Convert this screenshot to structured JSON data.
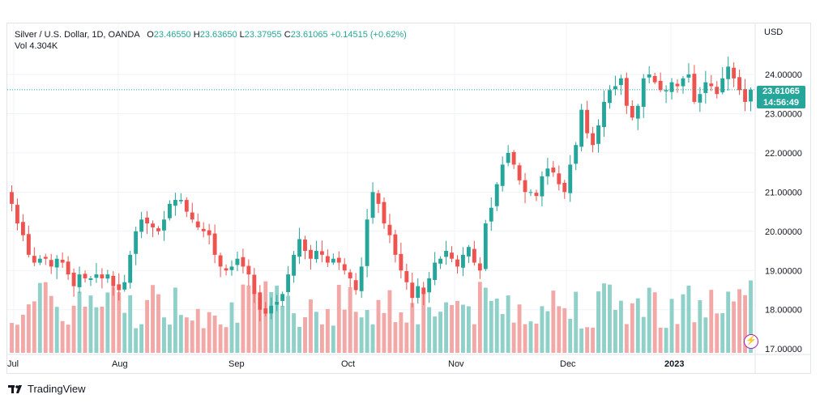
{
  "legend": {
    "symbol": "Silver / U.S. Dollar, 1D, OANDA",
    "o_label": "O",
    "o_value": "23.46550",
    "h_label": "H",
    "h_value": "23.63650",
    "l_label": "L",
    "l_value": "23.37955",
    "c_label": "C",
    "c_value": "23.61065",
    "change": "+0.14515 (+0.62%)",
    "vol_label": "Vol",
    "vol_value": "4.304K"
  },
  "currency": "USD",
  "last_price": "23.61065",
  "countdown": "14:56:49",
  "branding": "TradingView",
  "colors": {
    "up": "#26a69a",
    "down": "#ef5350",
    "up_vol": "#8fd0c9",
    "down_vol": "#f2a8a6"
  },
  "chart_data": {
    "type": "candlestick",
    "y_ticks": [
      "17.00000",
      "18.00000",
      "19.00000",
      "20.00000",
      "21.00000",
      "22.00000",
      "23.00000",
      "24.00000"
    ],
    "x_labels": [
      "Jul",
      "Aug",
      "Sep",
      "Oct",
      "Nov",
      "Dec",
      "2023"
    ],
    "ylim": [
      16.9,
      25.3
    ],
    "close_series": [
      20.7,
      20.2,
      19.9,
      19.4,
      19.2,
      19.3,
      19.3,
      19.1,
      19.3,
      19.2,
      18.9,
      18.6,
      18.9,
      18.8,
      18.8,
      18.9,
      18.8,
      18.9,
      18.6,
      18.5,
      18.7,
      19.4,
      20.0,
      20.3,
      20.2,
      20.1,
      20.0,
      20.3,
      20.7,
      20.8,
      20.8,
      20.5,
      20.3,
      20.1,
      20.0,
      19.9,
      19.4,
      19.1,
      19.0,
      19.1,
      19.3,
      19.1,
      18.9,
      18.4,
      18.0,
      17.9,
      18.1,
      18.2,
      18.4,
      18.9,
      19.4,
      19.8,
      19.5,
      19.3,
      19.5,
      19.4,
      19.2,
      19.3,
      19.2,
      19.0,
      18.8,
      18.5,
      19.1,
      20.3,
      21.0,
      20.7,
      20.2,
      19.9,
      19.4,
      19.0,
      18.7,
      18.3,
      18.6,
      18.4,
      18.8,
      19.2,
      19.3,
      19.5,
      19.3,
      19.1,
      19.4,
      19.6,
      19.2,
      19.0,
      20.2,
      20.6,
      21.2,
      21.7,
      22.0,
      21.7,
      21.3,
      21.0,
      21.0,
      20.9,
      21.4,
      21.6,
      21.5,
      21.2,
      21.0,
      21.7,
      22.2,
      23.1,
      22.5,
      22.2,
      22.7,
      23.3,
      23.6,
      23.7,
      23.9,
      23.2,
      22.9,
      23.2,
      23.9,
      24.0,
      23.8,
      23.6,
      23.6,
      23.8,
      23.7,
      23.9,
      24.0,
      23.3,
      23.5,
      23.8,
      23.7,
      23.5,
      23.9,
      24.2,
      23.9,
      23.6,
      23.3,
      23.61
    ]
  }
}
